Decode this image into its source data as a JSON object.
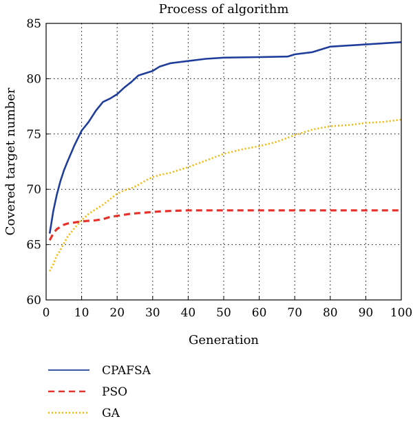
{
  "chart_data": {
    "type": "line",
    "title": "Process of algorithm",
    "xlabel": "Generation",
    "ylabel": "Covered target number",
    "xlim": [
      0,
      100
    ],
    "ylim": [
      60,
      85
    ],
    "xticks": [
      0,
      10,
      20,
      30,
      40,
      50,
      60,
      70,
      80,
      90,
      100
    ],
    "yticks": [
      60,
      65,
      70,
      75,
      80,
      85
    ],
    "grid": true,
    "legend_position": "bottom-left, below plot",
    "series": [
      {
        "name": "CPAFSA",
        "color": "#1f3d9a",
        "style": "solid",
        "x": [
          1,
          2,
          3,
          4,
          5,
          6,
          8,
          10,
          12,
          14,
          16,
          18,
          20,
          22,
          24,
          26,
          28,
          30,
          32,
          35,
          40,
          45,
          50,
          60,
          68,
          70,
          75,
          80,
          85,
          90,
          95,
          100
        ],
        "y": [
          66.0,
          68.0,
          69.5,
          70.7,
          71.7,
          72.5,
          74.0,
          75.3,
          76.1,
          77.1,
          77.9,
          78.2,
          78.6,
          79.2,
          79.7,
          80.3,
          80.5,
          80.7,
          81.1,
          81.4,
          81.6,
          81.8,
          81.9,
          81.95,
          82.0,
          82.2,
          82.4,
          82.9,
          83.0,
          83.1,
          83.2,
          83.3
        ]
      },
      {
        "name": "PSO",
        "color": "#e8302a",
        "style": "dashed",
        "x": [
          1,
          2,
          3,
          4,
          5,
          6,
          8,
          10,
          12,
          14,
          16,
          18,
          20,
          22,
          24,
          26,
          28,
          30,
          32,
          35,
          40,
          50,
          60,
          70,
          80,
          90,
          100
        ],
        "y": [
          65.4,
          66.0,
          66.4,
          66.6,
          66.8,
          66.9,
          67.0,
          67.1,
          67.15,
          67.2,
          67.3,
          67.5,
          67.6,
          67.7,
          67.8,
          67.85,
          67.9,
          67.95,
          68.0,
          68.05,
          68.1,
          68.1,
          68.1,
          68.1,
          68.1,
          68.1,
          68.1
        ]
      },
      {
        "name": "GA",
        "color": "#f2b705",
        "style": "dotted",
        "x": [
          1,
          2,
          3,
          4,
          5,
          6,
          8,
          10,
          12,
          14,
          16,
          18,
          20,
          22,
          24,
          26,
          28,
          30,
          32,
          35,
          40,
          45,
          50,
          55,
          60,
          65,
          70,
          75,
          80,
          85,
          90,
          95,
          100
        ],
        "y": [
          62.6,
          63.2,
          64.0,
          64.5,
          65.1,
          65.7,
          66.5,
          67.2,
          67.8,
          68.2,
          68.6,
          69.1,
          69.6,
          69.9,
          70.1,
          70.4,
          70.8,
          71.1,
          71.3,
          71.5,
          72.0,
          72.6,
          73.2,
          73.6,
          73.9,
          74.3,
          74.9,
          75.4,
          75.7,
          75.8,
          76.0,
          76.1,
          76.3
        ]
      }
    ]
  }
}
